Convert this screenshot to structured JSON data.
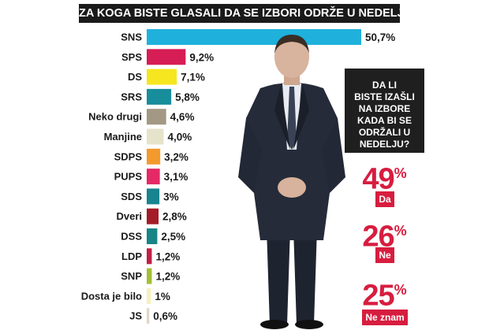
{
  "title": "ZA KOGA BISTE GLASALI DA SE IZBORI ODRŽE U NEDELJU?",
  "chart_data": {
    "type": "bar",
    "orientation": "horizontal",
    "title": "ZA KOGA BISTE GLASALI DA SE IZBORI ODRŽE U NEDELJU?",
    "categories": [
      "SNS",
      "SPS",
      "DS",
      "SRS",
      "Neko drugi",
      "Manjine",
      "SDPS",
      "PUPS",
      "SDS",
      "Dveri",
      "DSS",
      "LDP",
      "SNP",
      "Dosta je bilo",
      "JS"
    ],
    "values": [
      50.7,
      9.2,
      7.1,
      5.8,
      4.6,
      4.0,
      3.2,
      3.1,
      3,
      2.8,
      2.5,
      1.2,
      1.2,
      1,
      0.6
    ],
    "value_labels": [
      "50,7%",
      "9,2%",
      "7,1%",
      "5,8%",
      "4,6%",
      "4,0%",
      "3,2%",
      "3,1%",
      "3%",
      "2,8%",
      "2,5%",
      "1,2%",
      "1,2%",
      "1%",
      "0,6%"
    ],
    "colors": [
      "#1fb1dc",
      "#d71d55",
      "#f6e620",
      "#188d9c",
      "#a39883",
      "#e6e3cb",
      "#f39a2d",
      "#e52866",
      "#17848f",
      "#a31c27",
      "#178486",
      "#c21e45",
      "#a2c034",
      "#f6f1bd",
      "#e0d7c9"
    ],
    "xlim": [
      0,
      50.7
    ],
    "grid": false,
    "legend": "none"
  },
  "side_panel": {
    "question_lines": [
      "DA LI",
      "BISTE IZAŠLI",
      "NA IZBORE",
      "KADA BI SE",
      "ODRŽALI U",
      "NEDELJU?"
    ],
    "answers": [
      {
        "number": "49",
        "unit": "%",
        "value": 49,
        "label": "Da"
      },
      {
        "number": "26",
        "unit": "%",
        "value": 26,
        "label": "Ne"
      },
      {
        "number": "25",
        "unit": "%",
        "value": 25,
        "label": "Ne znam"
      }
    ],
    "accent_color": "#d71d3f"
  },
  "photo_icon": "man-in-suit-photo"
}
